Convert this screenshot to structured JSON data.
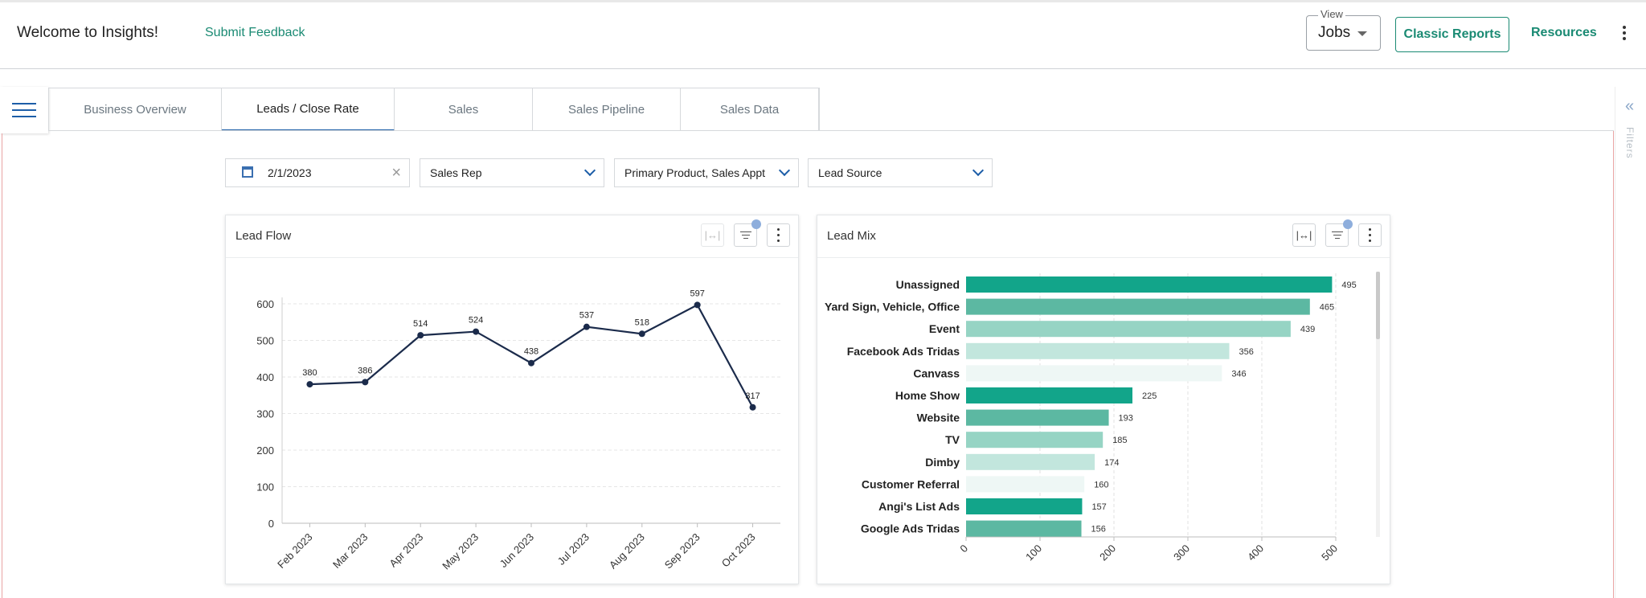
{
  "header": {
    "welcome": "Welcome to Insights!",
    "feedback": "Submit Feedback",
    "view_label": "View",
    "view_value": "Jobs",
    "classic_reports": "Classic Reports",
    "resources": "Resources"
  },
  "tabs": [
    {
      "label": "Business Overview",
      "active": false
    },
    {
      "label": "Leads / Close Rate",
      "active": true
    },
    {
      "label": "Sales",
      "active": false
    },
    {
      "label": "Sales Pipeline",
      "active": false
    },
    {
      "label": "Sales Data",
      "active": false
    }
  ],
  "filters_panel": {
    "label": "Filters"
  },
  "filters": {
    "date": "2/1/2023",
    "sales_rep": "Sales Rep",
    "product": "Primary Product, Sales Appt",
    "lead_source": "Lead Source"
  },
  "colors": {
    "accent": "#1a8a73",
    "primary": "#1d5ea8",
    "line": "#1b2b4b"
  },
  "chart_data": [
    {
      "id": "lead-flow",
      "type": "line",
      "title": "Lead Flow",
      "categories": [
        "Feb 2023",
        "Mar 2023",
        "Apr 2023",
        "May 2023",
        "Jun 2023",
        "Jul 2023",
        "Aug 2023",
        "Sep 2023",
        "Oct 2023"
      ],
      "values": [
        380,
        386,
        514,
        524,
        438,
        537,
        518,
        597,
        317
      ],
      "ylim": [
        0,
        600
      ],
      "yticks": [
        0,
        100,
        200,
        300,
        400,
        500,
        600
      ],
      "xlabel": "",
      "ylabel": "",
      "grid": true
    },
    {
      "id": "lead-mix",
      "type": "bar",
      "orientation": "horizontal",
      "title": "Lead Mix",
      "categories": [
        "Unassigned",
        "Yard Sign, Vehicle, Office",
        "Event",
        "Facebook Ads Tridas",
        "Canvass",
        "Home Show",
        "Website",
        "TV",
        "Dimby",
        "Customer Referral",
        "Angi's List Ads",
        "Google Ads Tridas"
      ],
      "values": [
        495,
        465,
        439,
        356,
        346,
        225,
        193,
        185,
        174,
        160,
        157,
        156
      ],
      "bar_colors": [
        "#12a58a",
        "#5cb8a2",
        "#96d4c4",
        "#c2e6dd",
        "#eef7f5",
        "#12a58a",
        "#5cb8a2",
        "#96d4c4",
        "#c2e6dd",
        "#eef7f5",
        "#12a58a",
        "#5cb8a2"
      ],
      "xlim": [
        0,
        500
      ],
      "xticks": [
        0,
        100,
        200,
        300,
        400,
        500
      ],
      "grid": true
    }
  ]
}
